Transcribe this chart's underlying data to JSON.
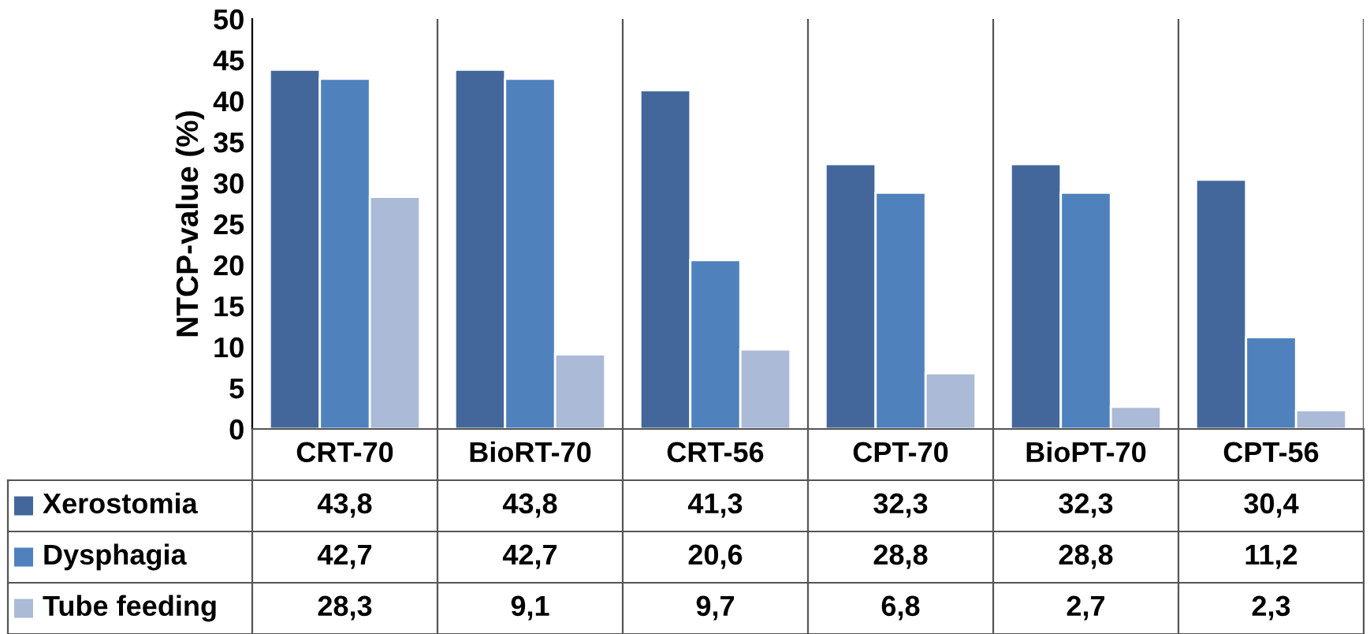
{
  "chart_data": {
    "type": "bar",
    "ylabel": "NTCP-value (%)",
    "categories": [
      "CRT-70",
      "BioRT-70",
      "CRT-56",
      "CPT-70",
      "BioPT-70",
      "CPT-56"
    ],
    "series": [
      {
        "name": "Xerostomia",
        "color": "#43679b",
        "values": [
          43.8,
          43.8,
          41.3,
          32.3,
          32.3,
          30.4
        ],
        "value_labels": [
          "43,8",
          "43,8",
          "41,3",
          "32,3",
          "32,3",
          "30,4"
        ]
      },
      {
        "name": "Dysphagia",
        "color": "#4f81bd",
        "values": [
          42.7,
          42.7,
          20.6,
          28.8,
          28.8,
          11.2
        ],
        "value_labels": [
          "42,7",
          "42,7",
          "20,6",
          "28,8",
          "28,8",
          "11,2"
        ]
      },
      {
        "name": "Tube feeding",
        "color": "#aabad7",
        "values": [
          28.3,
          9.1,
          9.7,
          6.8,
          2.7,
          2.3
        ],
        "value_labels": [
          "28,3",
          "9,1",
          "9,7",
          "6,8",
          "2,7",
          "2,3"
        ]
      }
    ],
    "legend": "bottom",
    "ylim": [
      0,
      50
    ],
    "yticks": [
      0,
      5,
      10,
      15,
      20,
      25,
      30,
      35,
      40,
      45,
      50
    ]
  }
}
